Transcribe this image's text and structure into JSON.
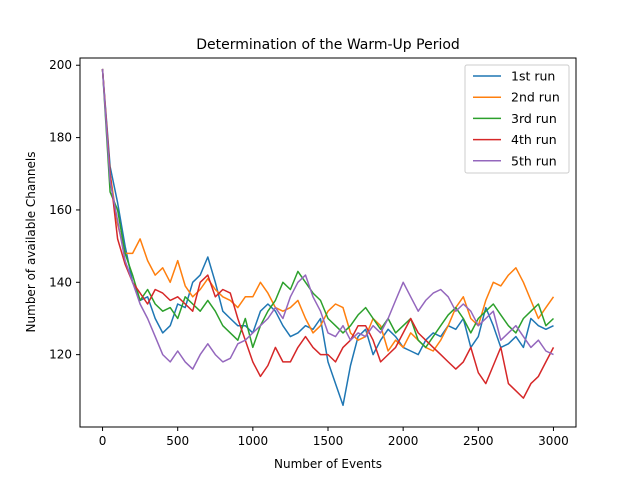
{
  "chart_data": {
    "type": "line",
    "title": "Determination of the Warm-Up Period",
    "xlabel": "Number of Events",
    "ylabel": "Number of available Channels",
    "xlim": [
      -150,
      3150
    ],
    "ylim": [
      100,
      202
    ],
    "xticks": [
      0,
      500,
      1000,
      1500,
      2000,
      2500,
      3000
    ],
    "yticks": [
      120,
      140,
      160,
      180,
      200
    ],
    "grid": false,
    "legend_position": "top-right",
    "x": [
      0,
      50,
      100,
      150,
      200,
      250,
      300,
      350,
      400,
      450,
      500,
      550,
      600,
      650,
      700,
      750,
      800,
      850,
      900,
      950,
      1000,
      1050,
      1100,
      1150,
      1200,
      1250,
      1300,
      1350,
      1400,
      1450,
      1500,
      1550,
      1600,
      1650,
      1700,
      1750,
      1800,
      1850,
      1900,
      1950,
      2000,
      2050,
      2100,
      2150,
      2200,
      2250,
      2300,
      2350,
      2400,
      2450,
      2500,
      2550,
      2600,
      2650,
      2700,
      2750,
      2800,
      2850,
      2900,
      2950,
      3000
    ],
    "series": [
      {
        "name": "1st run",
        "color": "#1f77b4",
        "values": [
          199,
          172,
          162,
          150,
          140,
          135,
          136,
          130,
          126,
          128,
          134,
          133,
          140,
          142,
          147,
          140,
          132,
          130,
          128,
          128,
          126,
          132,
          134,
          132,
          128,
          125,
          126,
          128,
          127,
          130,
          118,
          112,
          106,
          117,
          125,
          127,
          120,
          124,
          127,
          125,
          122,
          121,
          120,
          124,
          126,
          125,
          128,
          127,
          130,
          122,
          125,
          133,
          128,
          122,
          123,
          125,
          122,
          130,
          128,
          127,
          128
        ]
      },
      {
        "name": "2nd run",
        "color": "#ff7f0e",
        "values": [
          199,
          170,
          156,
          148,
          148,
          152,
          146,
          142,
          144,
          140,
          146,
          139,
          136,
          138,
          141,
          138,
          136,
          135,
          133,
          136,
          136,
          140,
          137,
          133,
          132,
          133,
          135,
          130,
          126,
          128,
          132,
          134,
          133,
          126,
          124,
          125,
          130,
          128,
          121,
          124,
          122,
          126,
          124,
          122,
          121,
          124,
          128,
          133,
          136,
          130,
          128,
          135,
          140,
          139,
          142,
          144,
          140,
          135,
          130,
          133,
          136
        ]
      },
      {
        "name": "3rd run",
        "color": "#2ca02c",
        "values": [
          199,
          165,
          160,
          148,
          142,
          135,
          138,
          134,
          132,
          133,
          130,
          136,
          134,
          132,
          135,
          132,
          128,
          126,
          124,
          130,
          122,
          128,
          132,
          135,
          140,
          138,
          143,
          140,
          137,
          135,
          130,
          128,
          126,
          128,
          131,
          133,
          130,
          127,
          130,
          126,
          128,
          130,
          124,
          122,
          125,
          128,
          131,
          133,
          130,
          126,
          130,
          132,
          134,
          131,
          128,
          126,
          130,
          132,
          134,
          128,
          130
        ]
      },
      {
        "name": "4th run",
        "color": "#d62728",
        "values": [
          199,
          170,
          152,
          145,
          140,
          137,
          134,
          138,
          137,
          135,
          136,
          134,
          132,
          140,
          142,
          136,
          138,
          137,
          130,
          124,
          118,
          114,
          117,
          122,
          118,
          118,
          122,
          125,
          122,
          120,
          120,
          118,
          122,
          124,
          128,
          128,
          124,
          118,
          120,
          122,
          126,
          130,
          126,
          124,
          122,
          120,
          118,
          116,
          118,
          122,
          115,
          112,
          117,
          122,
          112,
          110,
          108,
          112,
          114,
          118,
          122
        ]
      },
      {
        "name": "5th run",
        "color": "#9467bd",
        "values": [
          199,
          168,
          157,
          146,
          140,
          134,
          130,
          125,
          120,
          118,
          121,
          118,
          116,
          120,
          123,
          120,
          118,
          119,
          123,
          124,
          126,
          128,
          130,
          133,
          130,
          136,
          140,
          142,
          136,
          132,
          126,
          125,
          128,
          124,
          126,
          125,
          128,
          126,
          130,
          135,
          140,
          136,
          132,
          135,
          137,
          138,
          136,
          132,
          134,
          132,
          128,
          130,
          132,
          124,
          126,
          128,
          125,
          122,
          124,
          121,
          120
        ]
      }
    ]
  }
}
